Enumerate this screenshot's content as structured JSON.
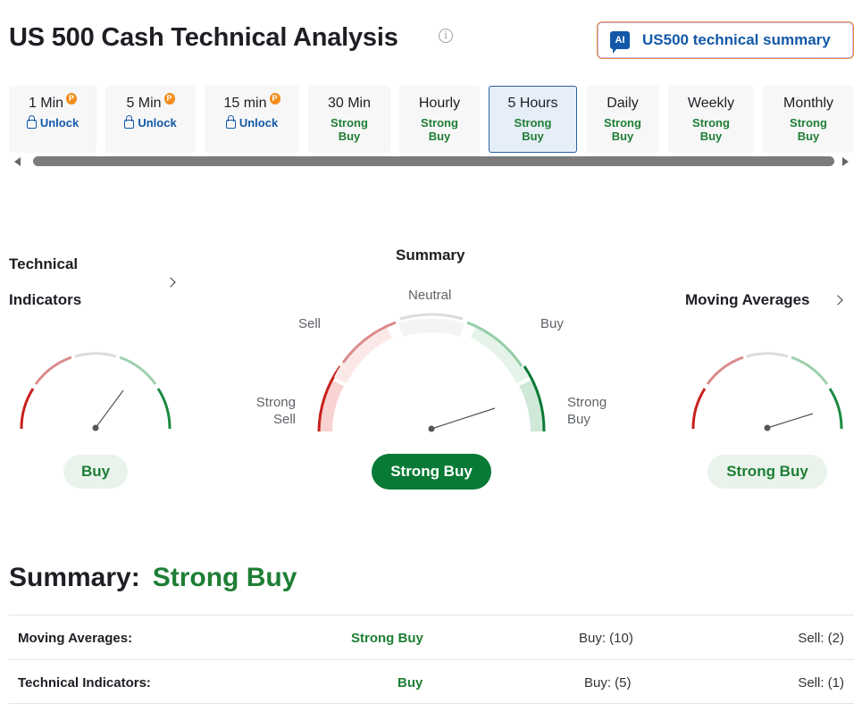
{
  "page": {
    "title": "US 500 Cash Technical Analysis",
    "ai_button": {
      "badge": "AI",
      "label": "US500 technical summary"
    }
  },
  "timeframes": [
    {
      "label": "1 Min",
      "locked": true,
      "unlock_label": "Unlock",
      "pro_badge": "P"
    },
    {
      "label": "5 Min",
      "locked": true,
      "unlock_label": "Unlock",
      "pro_badge": "P"
    },
    {
      "label": "15 min",
      "locked": true,
      "unlock_label": "Unlock",
      "pro_badge": "P"
    },
    {
      "label": "30 Min",
      "status_line1": "Strong",
      "status_line2": "Buy"
    },
    {
      "label": "Hourly",
      "status_line1": "Strong",
      "status_line2": "Buy"
    },
    {
      "label": "5 Hours",
      "status_line1": "Strong",
      "status_line2": "Buy",
      "active": true
    },
    {
      "label": "Daily",
      "status_line1": "Strong",
      "status_line2": "Buy"
    },
    {
      "label": "Weekly",
      "status_line1": "Strong",
      "status_line2": "Buy"
    },
    {
      "label": "Monthly",
      "status_line1": "Strong",
      "status_line2": "Buy"
    }
  ],
  "gauges": {
    "technical_indicators": {
      "title_line1": "Technical",
      "title_line2": "Indicators",
      "result": "Buy"
    },
    "summary": {
      "title": "Summary",
      "labels": {
        "strong_sell_1": "Strong",
        "strong_sell_2": "Sell",
        "sell": "Sell",
        "neutral": "Neutral",
        "buy": "Buy",
        "strong_buy_1": "Strong",
        "strong_buy_2": "Buy"
      },
      "result": "Strong Buy"
    },
    "moving_averages": {
      "title": "Moving Averages",
      "result": "Strong Buy"
    }
  },
  "summary": {
    "label": "Summary:",
    "value": "Strong Buy",
    "rows": [
      {
        "name": "Moving Averages:",
        "signal": "Strong Buy",
        "buy": "Buy: (10)",
        "sell": "Sell: (2)"
      },
      {
        "name": "Technical Indicators:",
        "signal": "Buy",
        "buy": "Buy: (5)",
        "sell": "Sell: (1)"
      }
    ]
  },
  "colors": {
    "strong_buy_green": "#087a35",
    "green_text": "#1e7e34",
    "blue_link": "#1258a8",
    "strong_sell_red": "#c8201c",
    "pro_orange": "#f28c1a"
  }
}
